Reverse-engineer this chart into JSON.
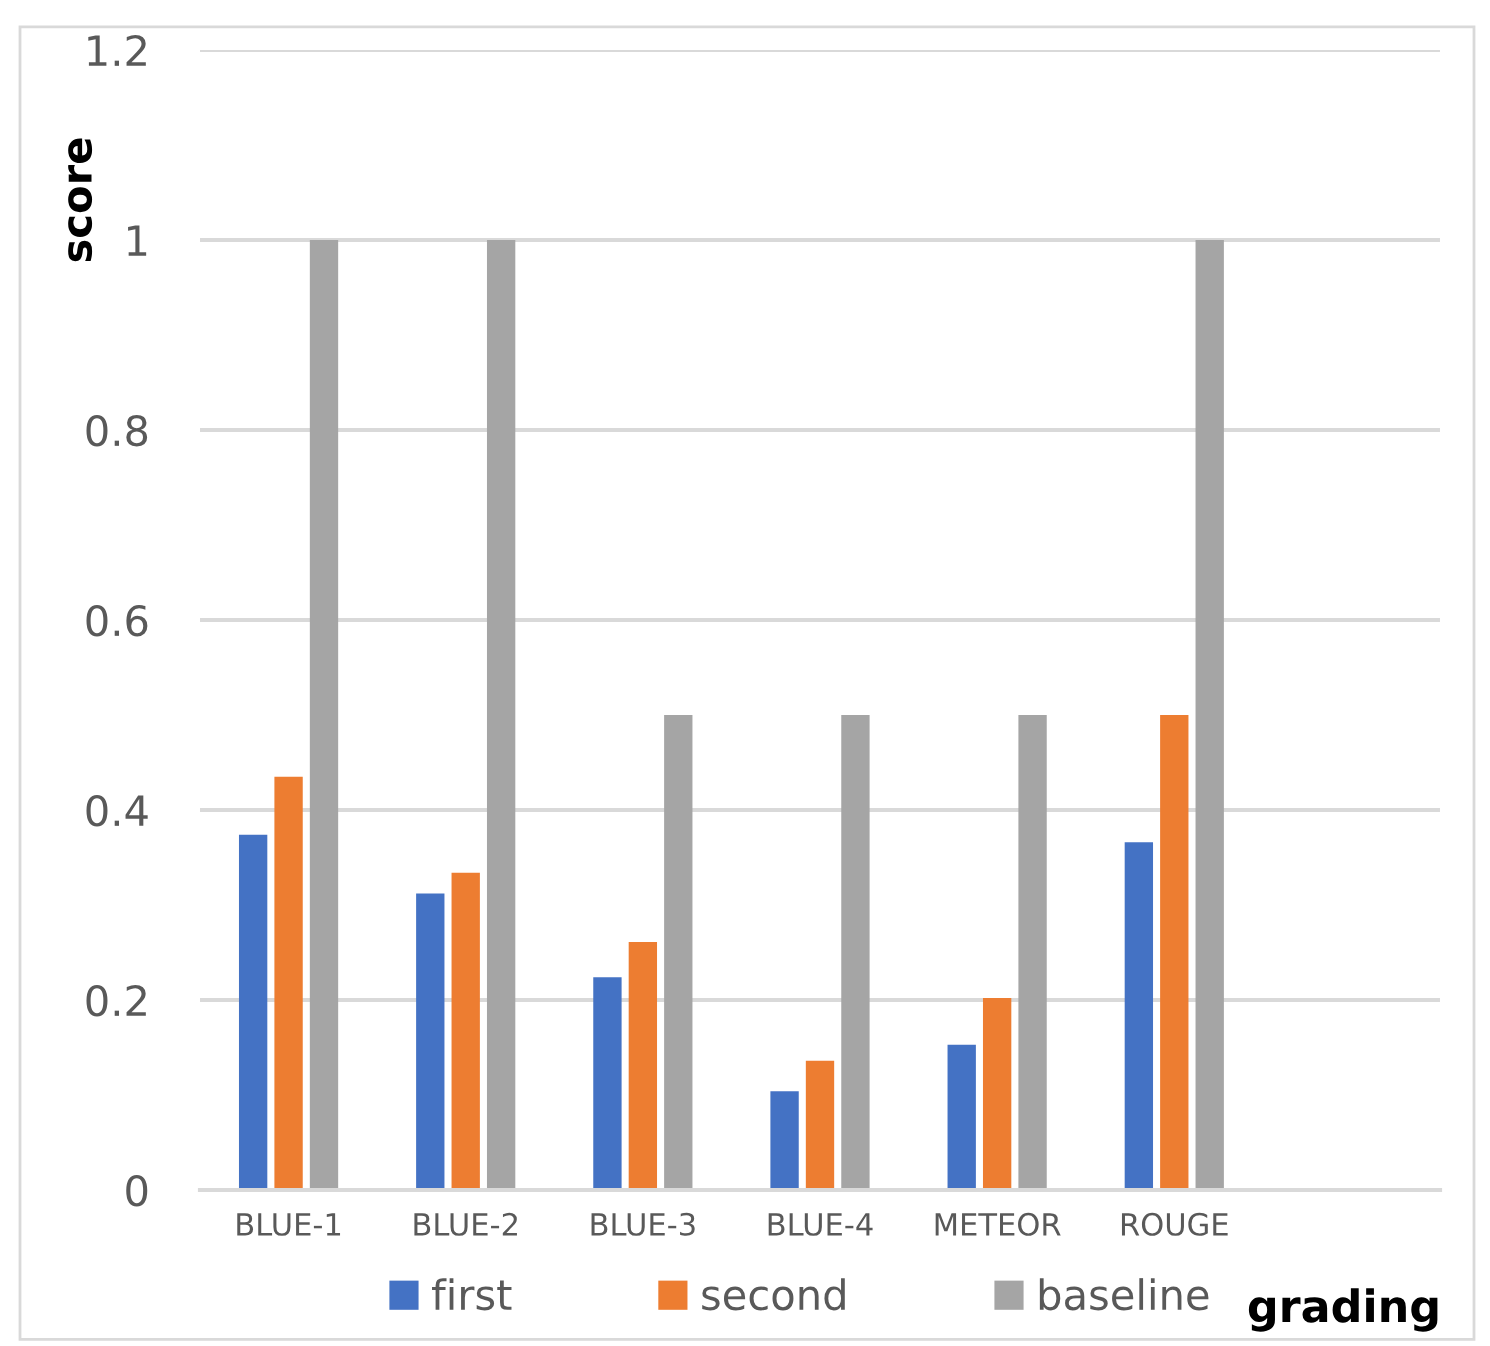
{
  "chart_data": {
    "type": "bar",
    "xlabel": "grading",
    "ylabel": "score",
    "categories": [
      "BLUE-1",
      "BLUE-2",
      "BLUE-3",
      "BLUE-4",
      "METEOR",
      "ROUGE",
      null
    ],
    "series": [
      {
        "name": "first",
        "color": "#4472c4",
        "values": [
          0.374,
          0.312,
          0.224,
          0.104,
          0.153,
          0.366,
          null
        ]
      },
      {
        "name": "second",
        "color": "#ed7d31",
        "values": [
          0.435,
          0.334,
          0.261,
          0.136,
          0.202,
          0.5,
          null
        ]
      },
      {
        "name": "baseline",
        "color": "#a5a5a5",
        "values": [
          1,
          1,
          0.5,
          0.5,
          0.5,
          1,
          null
        ]
      }
    ],
    "ylim": [
      0,
      1.2
    ],
    "yticks": [
      0,
      0.2,
      0.4,
      0.6,
      0.8,
      1,
      1.2
    ],
    "grid": "y",
    "legend": "bottom"
  }
}
